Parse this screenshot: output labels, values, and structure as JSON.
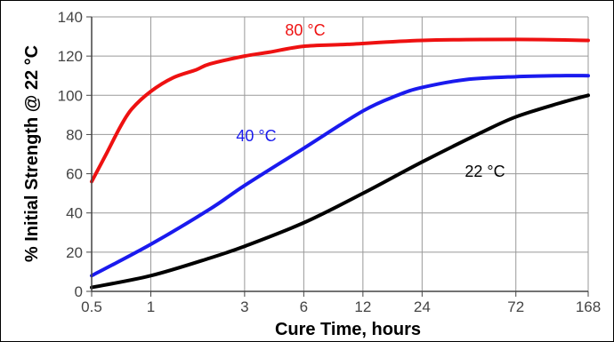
{
  "chart_data": {
    "type": "line",
    "title": "",
    "xlabel": "Cure Time, hours",
    "ylabel": "% Initial Strength @ 22 °C",
    "x_scale": "log",
    "xlim": [
      0.5,
      168
    ],
    "ylim": [
      0,
      140
    ],
    "x_ticks": [
      0.5,
      1,
      3,
      6,
      12,
      24,
      72,
      168
    ],
    "x_tick_labels": [
      "0.5",
      "1",
      "3",
      "6",
      "12",
      "24",
      "72",
      "168"
    ],
    "y_ticks": [
      0,
      20,
      40,
      60,
      80,
      100,
      120,
      140
    ],
    "y_tick_labels": [
      "0",
      "20",
      "40",
      "60",
      "80",
      "100",
      "120",
      "140"
    ],
    "grid": true,
    "legend": "none (curves labeled directly)",
    "series": [
      {
        "name": "80 °C",
        "color": "#ee1111",
        "x": [
          0.5,
          0.6,
          0.7,
          0.8,
          1,
          1.3,
          1.7,
          2,
          3,
          4,
          6,
          10,
          24,
          72,
          168
        ],
        "y": [
          56,
          71,
          84,
          93,
          102,
          109,
          113,
          116,
          120,
          122,
          125,
          126,
          128,
          128.5,
          128
        ]
      },
      {
        "name": "40 °C",
        "color": "#1a1aee",
        "x": [
          0.5,
          1,
          2,
          3,
          6,
          12,
          18,
          24,
          40,
          72,
          120,
          168
        ],
        "y": [
          8,
          24,
          42,
          54,
          73,
          92,
          100,
          104,
          108,
          109.5,
          110,
          110
        ]
      },
      {
        "name": "22 °C",
        "color": "#000000",
        "x": [
          0.5,
          1,
          2,
          3,
          6,
          12,
          24,
          48,
          72,
          120,
          168
        ],
        "y": [
          2,
          8,
          17,
          23,
          35,
          50,
          66,
          81,
          89,
          96,
          100
        ]
      }
    ]
  }
}
